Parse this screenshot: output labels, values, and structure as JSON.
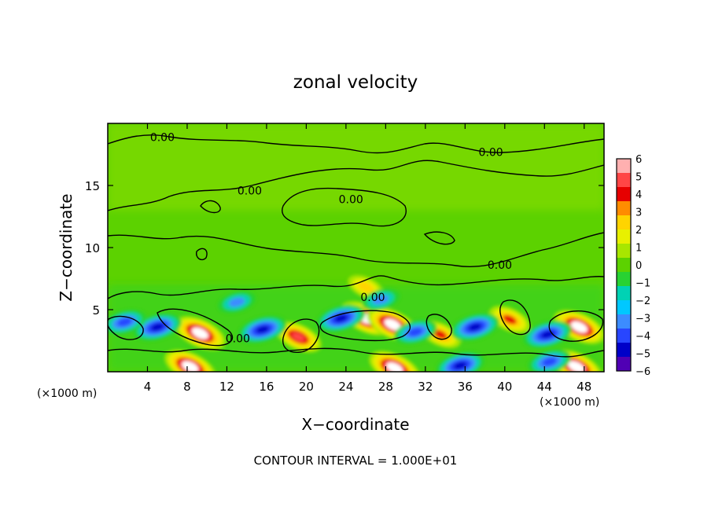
{
  "chart_data": {
    "type": "heatmap",
    "title": "zonal velocity",
    "xlabel": "X−coordinate",
    "ylabel": "Z−coordinate",
    "x_unit_left": "(×1000 m)",
    "x_unit_right": "(×1000 m)",
    "xlim": [
      0,
      50
    ],
    "ylim": [
      0,
      20
    ],
    "x_ticks": [
      4,
      8,
      12,
      16,
      20,
      24,
      28,
      32,
      36,
      40,
      44,
      48
    ],
    "y_ticks": [
      5,
      10,
      15
    ],
    "colorbar": {
      "min": -6,
      "max": 6,
      "labels": [
        "6",
        "5",
        "4",
        "3",
        "2",
        "1",
        "0",
        "−1",
        "−2",
        "−3",
        "−4",
        "−5",
        "−6"
      ],
      "colors": [
        "#ffb0b0",
        "#ff4646",
        "#e60000",
        "#ff8c00",
        "#ffd400",
        "#e8f000",
        "#a8e600",
        "#5cd200",
        "#28d232",
        "#00d2b4",
        "#00c8ff",
        "#3c8cff",
        "#2846ff",
        "#0000c8",
        "#5000b4"
      ]
    },
    "contour_labels": [
      {
        "text": "0.00",
        "x": 5.5,
        "z": 18.9
      },
      {
        "text": "0.00",
        "x": 38.6,
        "z": 17.7
      },
      {
        "text": "0.00",
        "x": 14.3,
        "z": 14.6
      },
      {
        "text": "0.00",
        "x": 24.5,
        "z": 13.9
      },
      {
        "text": "0.00",
        "x": 39.5,
        "z": 8.6
      },
      {
        "text": "0.00",
        "x": 26.7,
        "z": 6.0
      },
      {
        "text": "0.00",
        "x": 13.1,
        "z": 2.7
      }
    ],
    "features": [
      {
        "x": 9.3,
        "z": 3.1,
        "value": 6
      },
      {
        "x": 19.2,
        "z": 2.8,
        "value": 5
      },
      {
        "x": 26.0,
        "z": 4.3,
        "value": 6
      },
      {
        "x": 28.7,
        "z": 3.8,
        "value": 6
      },
      {
        "x": 33.5,
        "z": 3.0,
        "value": 4
      },
      {
        "x": 40.5,
        "z": 4.2,
        "value": 4
      },
      {
        "x": 47.5,
        "z": 3.6,
        "value": 6
      },
      {
        "x": 26.0,
        "z": 6.8,
        "value": 3
      },
      {
        "x": 8.3,
        "z": 0.4,
        "value": 6
      },
      {
        "x": 28.9,
        "z": 0.3,
        "value": 6
      },
      {
        "x": 47.2,
        "z": 0.4,
        "value": 6
      },
      {
        "x": 5.0,
        "z": 3.6,
        "value": -5
      },
      {
        "x": 1.7,
        "z": 4.0,
        "value": -4
      },
      {
        "x": 15.6,
        "z": 3.4,
        "value": -5
      },
      {
        "x": 23.5,
        "z": 4.3,
        "value": -5
      },
      {
        "x": 31.0,
        "z": 3.2,
        "value": -4
      },
      {
        "x": 37.0,
        "z": 3.6,
        "value": -5
      },
      {
        "x": 44.3,
        "z": 3.0,
        "value": -5
      },
      {
        "x": 13.0,
        "z": 5.6,
        "value": -3
      },
      {
        "x": 27.5,
        "z": 5.8,
        "value": -3
      },
      {
        "x": 35.5,
        "z": 0.5,
        "value": -5
      },
      {
        "x": 44.5,
        "z": 0.8,
        "value": -4
      }
    ]
  },
  "footer": {
    "contour_interval": "CONTOUR INTERVAL = 1.000E+01"
  }
}
